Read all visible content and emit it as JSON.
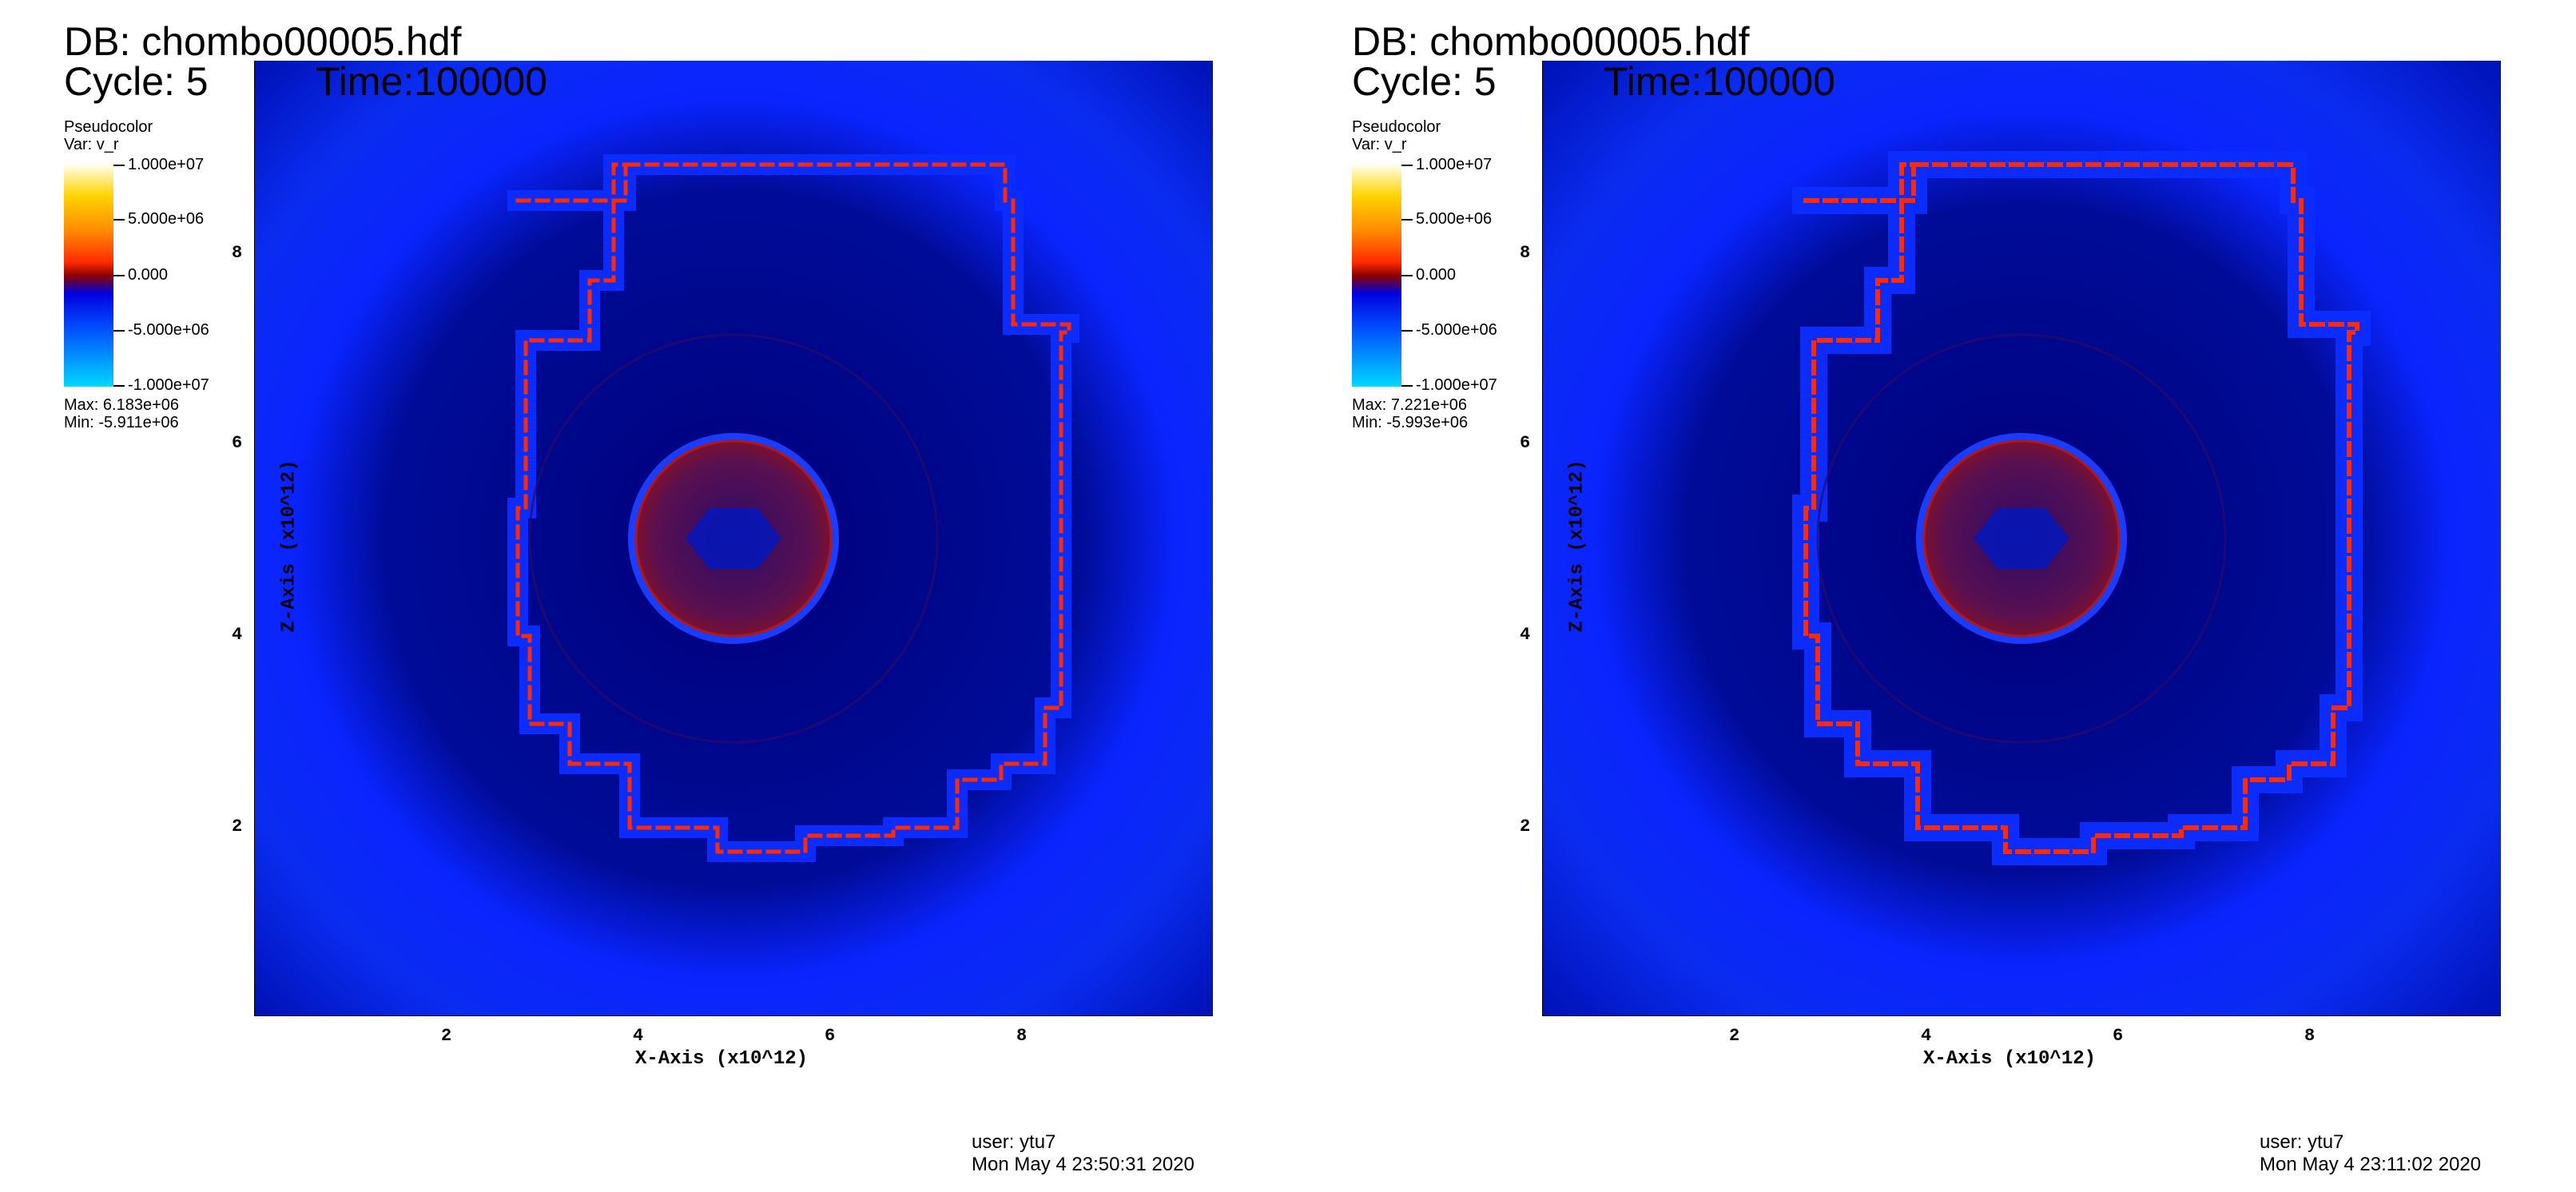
{
  "panels": [
    {
      "db_title": "DB: chombo00005.hdf",
      "cycle": "Cycle: 5",
      "time": "Time:100000",
      "legend": {
        "title": "Pseudocolor",
        "var": "Var: v_r",
        "ticks": [
          "1.000e+07",
          "5.000e+06",
          "0.000",
          "-5.000e+06",
          "-1.000e+07"
        ],
        "max": "Max:  6.183e+06",
        "min": "Min: -5.911e+06"
      },
      "xlabel": "X-Axis (x10^12)",
      "ylabel": "Z-Axis (x10^12)",
      "xticks": [
        "2",
        "4",
        "6",
        "8"
      ],
      "yticks": [
        "8",
        "6",
        "4",
        "2"
      ],
      "user": "user: ytu7",
      "date": "Mon May  4 23:50:31 2020"
    },
    {
      "db_title": "DB: chombo00005.hdf",
      "cycle": "Cycle: 5",
      "time": "Time:100000",
      "legend": {
        "title": "Pseudocolor",
        "var": "Var: v_r",
        "ticks": [
          "1.000e+07",
          "5.000e+06",
          "0.000",
          "-5.000e+06",
          "-1.000e+07"
        ],
        "max": "Max:  7.221e+06",
        "min": "Min: -5.993e+06"
      },
      "xlabel": "X-Axis (x10^12)",
      "ylabel": "Z-Axis (x10^12)",
      "xticks": [
        "2",
        "4",
        "6",
        "8"
      ],
      "yticks": [
        "8",
        "6",
        "4",
        "2"
      ],
      "user": "user: ytu7",
      "date": "Mon May  4 23:11:02 2020"
    }
  ],
  "colors": {
    "field_dark": "#00007a",
    "field_blue": "#0a1eff",
    "shock_red": "#ff2a00",
    "core_red": "#7a1030"
  }
}
